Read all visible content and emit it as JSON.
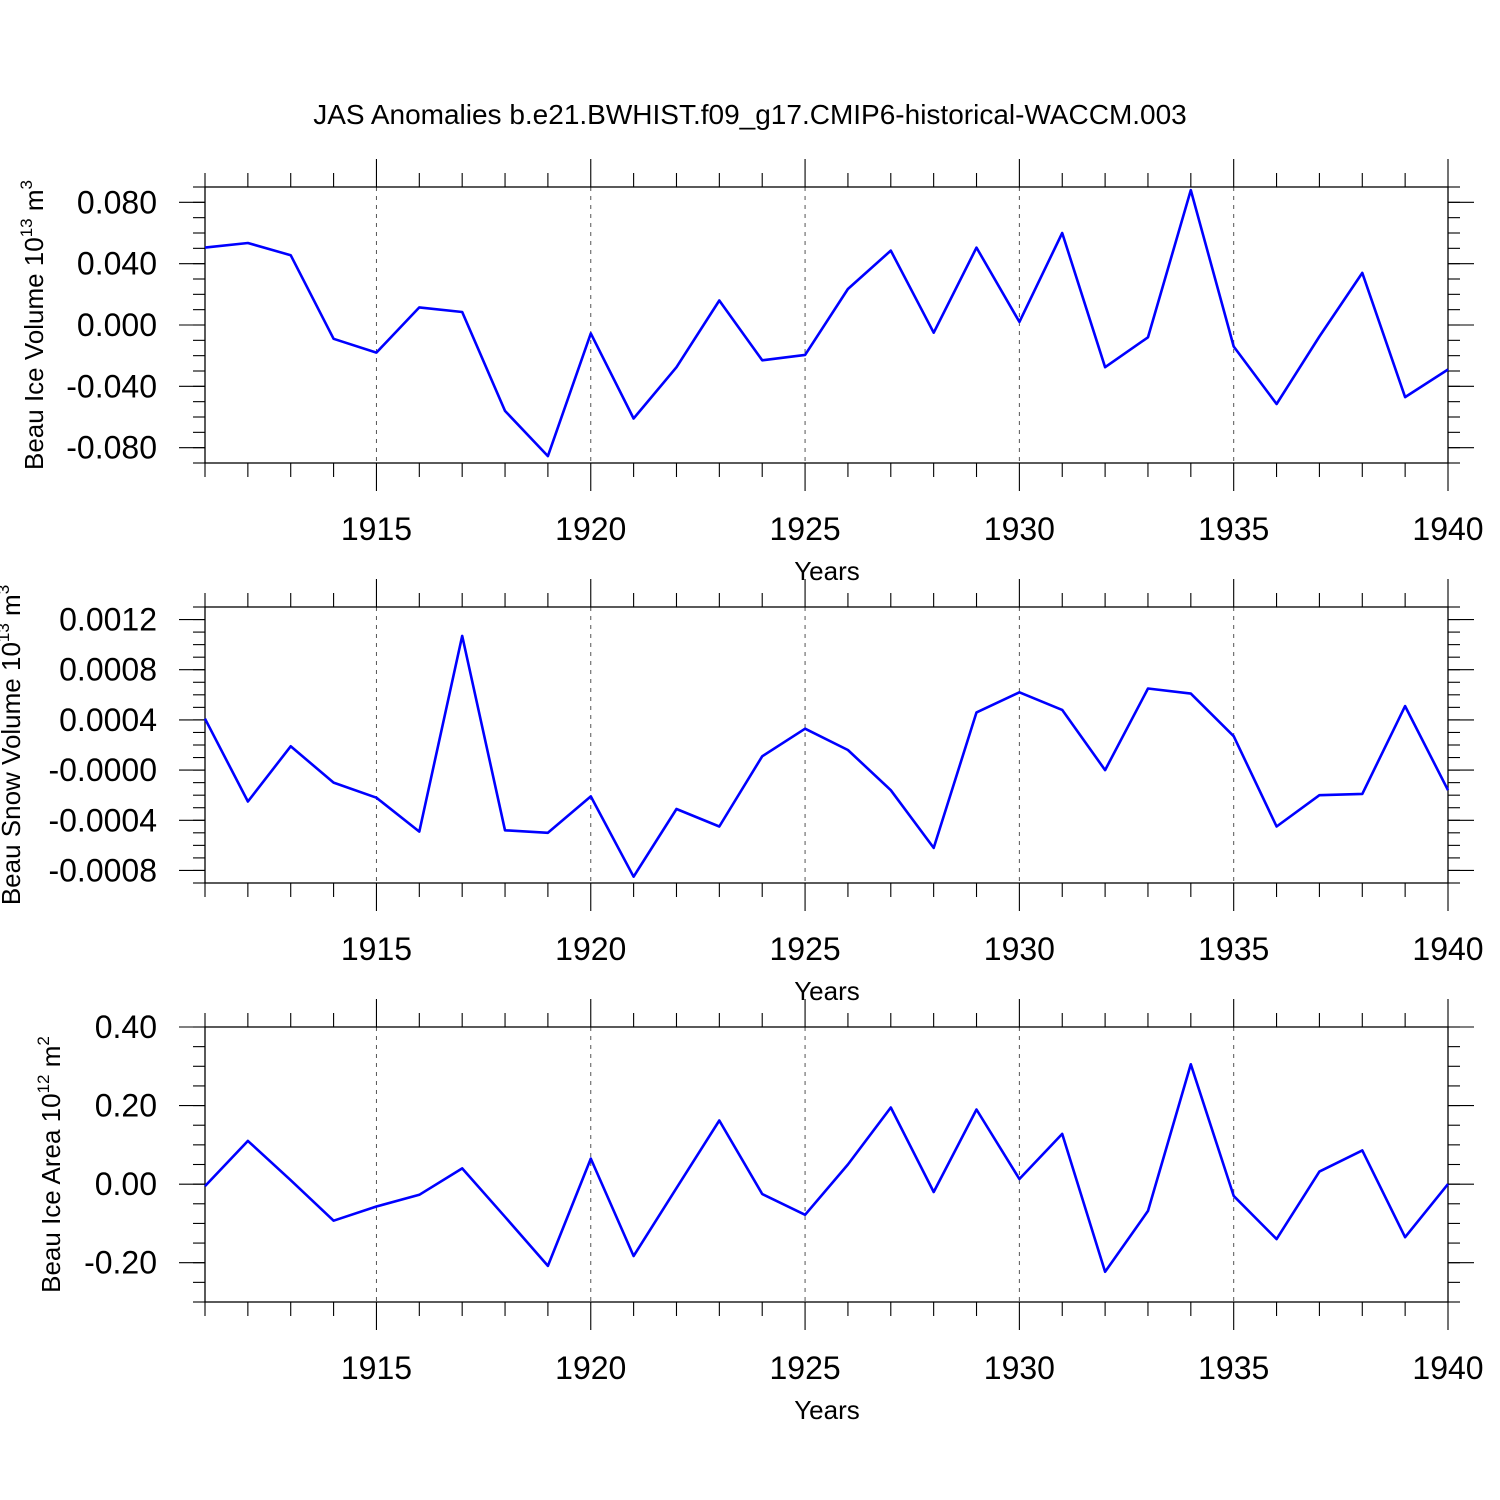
{
  "chart_data": {
    "type": "line",
    "title": "JAS Anomalies b.e21.BWHIST.f09_g17.CMIP6-historical-WACCM.003",
    "line_color": "#0000ff",
    "x": [
      1911,
      1912,
      1913,
      1914,
      1915,
      1916,
      1917,
      1918,
      1919,
      1920,
      1921,
      1922,
      1923,
      1924,
      1925,
      1926,
      1927,
      1928,
      1929,
      1930,
      1931,
      1932,
      1933,
      1934,
      1935,
      1936,
      1937,
      1938,
      1939,
      1940
    ],
    "xlim": [
      1911,
      1940
    ],
    "x_ticks": [
      1915,
      1920,
      1925,
      1930,
      1935,
      1940
    ],
    "x_tick_labels": [
      "1915",
      "1920",
      "1925",
      "1930",
      "1935",
      "1940"
    ],
    "x_grid": "dashed vertical lines at labeled years",
    "panels": [
      {
        "id": "ice-volume",
        "ylabel": "Beau Ice Volume 10",
        "ylabel_sup": "13",
        "ylabel_unit": "m",
        "ylabel_unit_sup": "3",
        "xlabel": "Years",
        "ylim": [
          -0.09,
          0.09
        ],
        "y_ticks": [
          -0.08,
          -0.04,
          0.0,
          0.04,
          0.08
        ],
        "y_tick_labels": [
          "-0.080",
          "-0.040",
          "0.000",
          "0.040",
          "0.080"
        ],
        "y_minor_step": 0.01,
        "values": [
          0.0505,
          0.0535,
          0.0455,
          -0.009,
          -0.018,
          0.0115,
          0.0085,
          -0.056,
          -0.0855,
          -0.0055,
          -0.061,
          -0.0275,
          0.016,
          -0.023,
          -0.0195,
          0.0235,
          0.0485,
          -0.005,
          0.0505,
          0.002,
          0.06,
          -0.0275,
          -0.008,
          0.088,
          -0.014,
          -0.0515,
          -0.0075,
          0.034,
          -0.047,
          -0.029
        ]
      },
      {
        "id": "snow-volume",
        "ylabel": "Beau Snow Volume 10",
        "ylabel_sup": "13",
        "ylabel_unit": "m",
        "ylabel_unit_sup": "3",
        "xlabel": "Years",
        "ylim": [
          -0.0009,
          0.0013
        ],
        "y_ticks": [
          -0.0008,
          -0.0004,
          0.0,
          0.0004,
          0.0008,
          0.0012
        ],
        "y_tick_labels": [
          "-0.0008",
          "-0.0004",
          "-0.0000",
          "0.0004",
          "0.0008",
          "0.0012"
        ],
        "y_minor_step": 0.0001,
        "values": [
          0.00041,
          -0.00025,
          0.00019,
          -0.0001,
          -0.00022,
          -0.00049,
          0.00107,
          -0.00048,
          -0.0005,
          -0.00021,
          -0.00085,
          -0.00031,
          -0.00045,
          0.00011,
          0.00033,
          0.00016,
          -0.00016,
          -0.00062,
          0.00046,
          0.00062,
          0.00048,
          0.0,
          0.00065,
          0.00061,
          0.00027,
          -0.00045,
          -0.0002,
          -0.00019,
          0.00051,
          -0.00016
        ]
      },
      {
        "id": "ice-area",
        "ylabel": "Beau Ice Area 10",
        "ylabel_sup": "12",
        "ylabel_unit": "m",
        "ylabel_unit_sup": "2",
        "xlabel": "Years",
        "ylim": [
          -0.3,
          0.4
        ],
        "y_ticks": [
          -0.2,
          0.0,
          0.2,
          0.4
        ],
        "y_tick_labels": [
          "-0.20",
          "0.00",
          "0.20",
          "0.40"
        ],
        "y_minor_step": 0.05,
        "values": [
          -0.005,
          0.11,
          0.01,
          -0.093,
          -0.057,
          -0.027,
          0.04,
          -0.083,
          -0.208,
          0.065,
          -0.183,
          -0.01,
          0.162,
          -0.025,
          -0.078,
          0.05,
          0.195,
          -0.02,
          0.19,
          0.013,
          0.128,
          -0.223,
          -0.068,
          0.305,
          -0.03,
          -0.14,
          0.032,
          0.086,
          -0.135,
          0.0
        ]
      }
    ]
  }
}
